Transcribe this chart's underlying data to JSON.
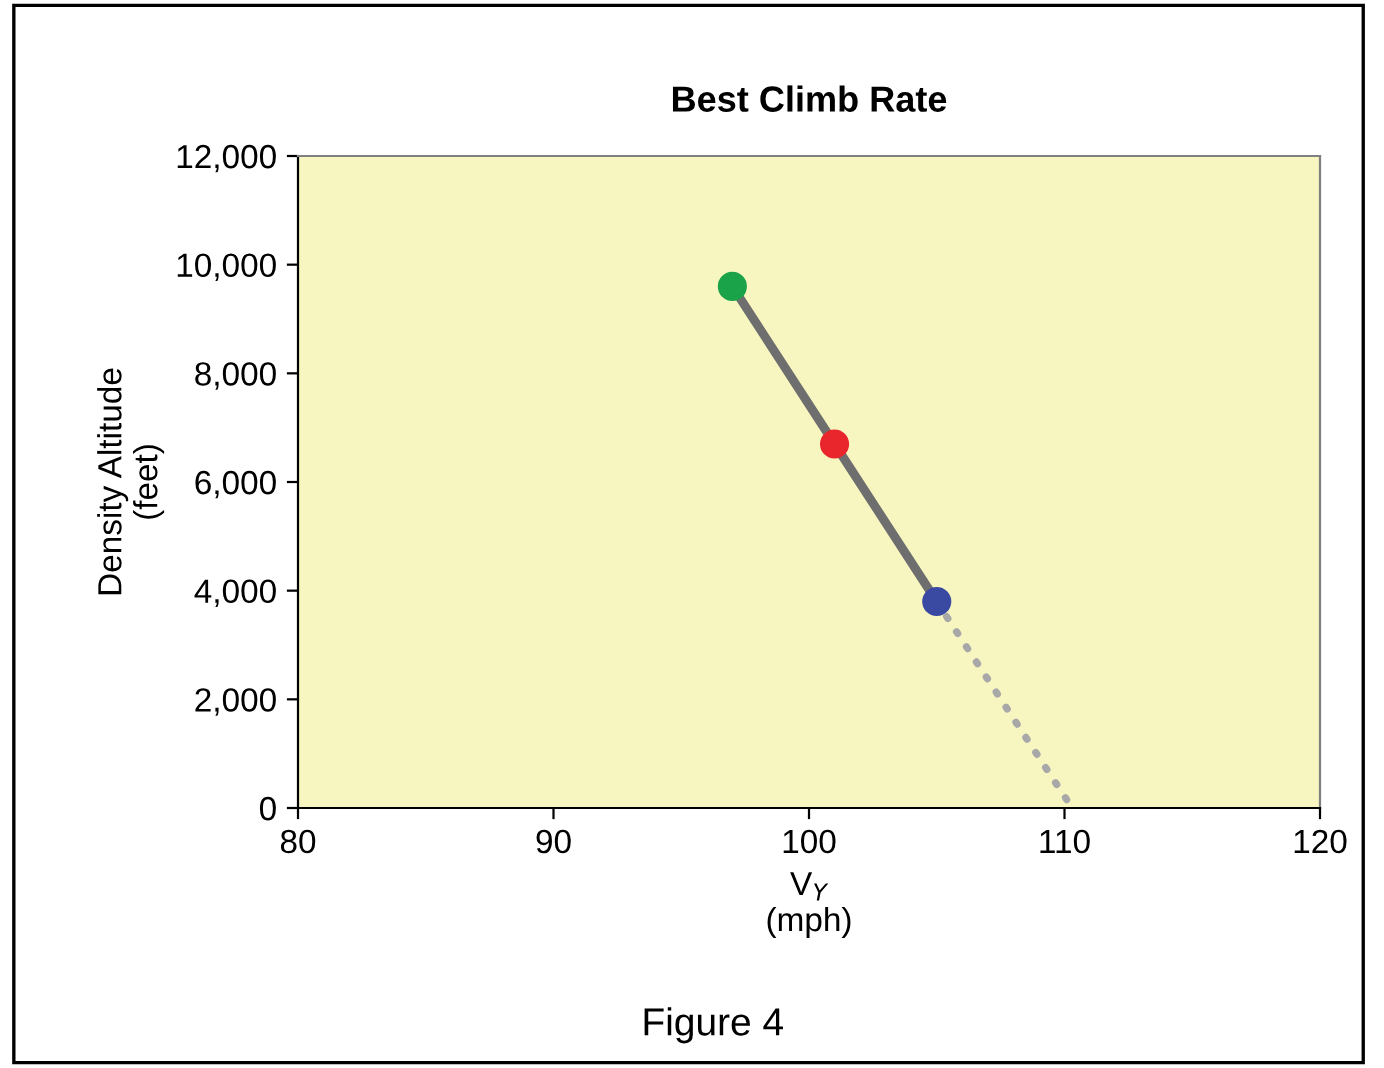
{
  "chart_data": {
    "type": "line",
    "title": "Best Climb Rate",
    "xlabel": "V$_{Y}$\n(mph)",
    "ylabel": "Density Altitude\n(feet)",
    "annotations": [
      "Figure 4"
    ],
    "series": [
      {
        "x": [
          97,
          101,
          105
        ],
        "values": [
          9600,
          6700,
          3800
        ],
        "color": "#6e6e6e",
        "line_style": "solid",
        "marker": "none"
      },
      {
        "x": [
          105,
          110.3
        ],
        "values": [
          3800,
          0
        ],
        "color": "#a8a8a8",
        "line_style": "dotted",
        "marker": "none"
      },
      {
        "type": "scatter",
        "x": [
          97,
          101,
          105
        ],
        "values": [
          9600,
          6700,
          3800
        ],
        "colors": [
          "#1ba34a",
          "#e8262b",
          "#3a49a2"
        ],
        "marker": "circle"
      }
    ],
    "xlim": [
      80,
      120
    ],
    "xticks": [
      80,
      90,
      100,
      110,
      120
    ],
    "ylim": [
      0,
      12000
    ],
    "yticks": [
      {
        "value": 0,
        "label": "0"
      },
      {
        "value": 2000,
        "label": "2,000"
      },
      {
        "value": 4000,
        "label": "4,000"
      },
      {
        "value": 6000,
        "label": "6,000"
      },
      {
        "value": 8000,
        "label": "8,000"
      },
      {
        "value": 10000,
        "label": "10,000"
      },
      {
        "value": 12000,
        "label": "12,000"
      }
    ],
    "grid": false,
    "legend": false
  }
}
